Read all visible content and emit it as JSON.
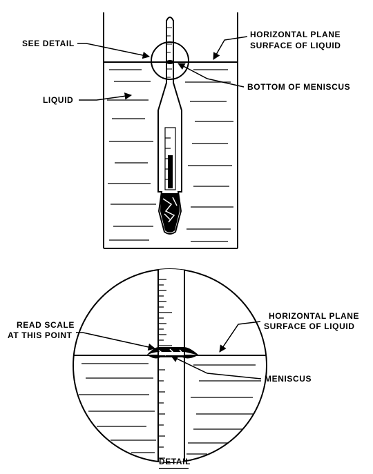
{
  "top_view": {
    "see_detail": "SEE DETAIL",
    "horizontal_plane_1": "HORIZONTAL PLANE",
    "horizontal_plane_2": "SURFACE OF LIQUID",
    "bottom_of_meniscus": "BOTTOM OF MENISCUS",
    "liquid": "LIQUID"
  },
  "detail_view": {
    "read_scale_1": "READ SCALE",
    "read_scale_2": "AT THIS POINT",
    "horizontal_plane_1": "HORIZONTAL PLANE",
    "horizontal_plane_2": "SURFACE OF LIQUID",
    "meniscus": "MENISCUS",
    "caption": "DETAIL"
  },
  "colors": {
    "ink": "#000000",
    "paper": "#ffffff"
  }
}
